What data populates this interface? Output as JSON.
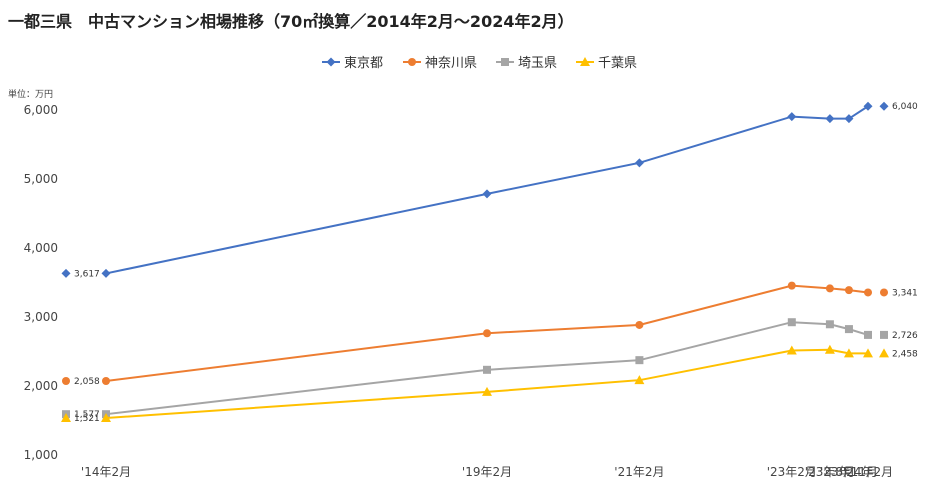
{
  "title": "一都三県　中古マンション相場推移（70㎡換算／2014年2月～2024年2月）",
  "unit_label": "単位：万円",
  "chart_data": {
    "type": "line",
    "categories": [
      "'14年2月",
      "'19年2月",
      "'21年2月",
      "'23年2月",
      "'23年8月",
      "'23年11月",
      "'24年2月"
    ],
    "x_positions_months": [
      0,
      60,
      84,
      108,
      114,
      117,
      120
    ],
    "ylim": [
      1000,
      6000
    ],
    "yticks": [
      "1,000",
      "2,000",
      "3,000",
      "4,000",
      "5,000",
      "6,000"
    ],
    "ytick_values": [
      1000,
      2000,
      3000,
      4000,
      5000,
      6000
    ],
    "grid": false,
    "legend_position": "top",
    "series": [
      {
        "name": "東京都",
        "color": "#4472C4",
        "marker": "diamond",
        "values": [
          3617,
          4770,
          5220,
          5890,
          5860,
          5860,
          6040
        ],
        "start_label": "3,617",
        "end_label": "6,040"
      },
      {
        "name": "神奈川県",
        "color": "#ED7D31",
        "marker": "circle",
        "values": [
          2058,
          2750,
          2870,
          3440,
          3400,
          3375,
          3341
        ],
        "start_label": "2,058",
        "end_label": "3,341"
      },
      {
        "name": "埼玉県",
        "color": "#A5A5A5",
        "marker": "square",
        "values": [
          1577,
          2220,
          2360,
          2910,
          2880,
          2810,
          2726
        ],
        "start_label": "1,577",
        "end_label": "2,726"
      },
      {
        "name": "千葉県",
        "color": "#FFC000",
        "marker": "triangle",
        "values": [
          1521,
          1900,
          2070,
          2500,
          2510,
          2458,
          2458
        ],
        "start_label": "1,521",
        "end_label": "2,458"
      }
    ]
  }
}
